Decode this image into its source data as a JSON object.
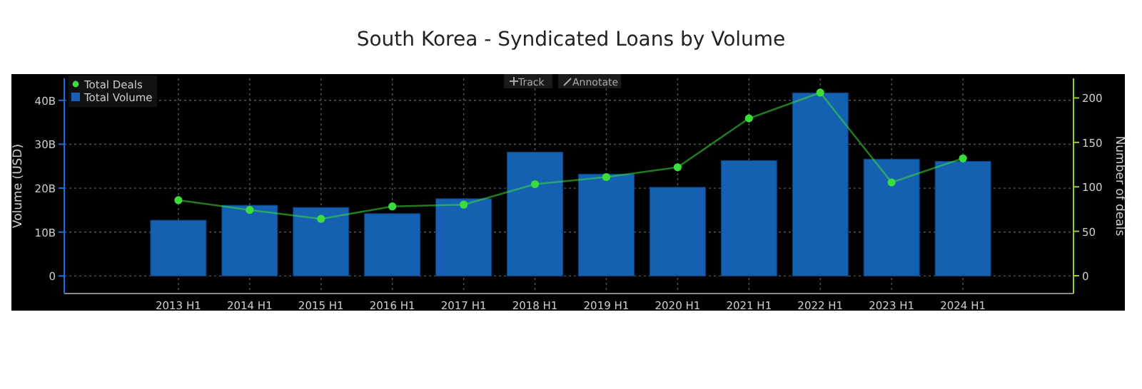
{
  "chart_data": {
    "type": "bar",
    "title": "South Korea - Syndicated Loans by Volume",
    "ylabel": "Volume (USD)",
    "y2label": "Number of deals",
    "categories": [
      "2013 H1",
      "2014 H1",
      "2015 H1",
      "2016 H1",
      "2017 H1",
      "2018 H1",
      "2019 H1",
      "2020 H1",
      "2021 H1",
      "2022 H1",
      "2023 H1",
      "2024 H1"
    ],
    "series": [
      {
        "name": "Total Volume",
        "color": "#1560b0",
        "values": [
          12.7,
          16.1,
          15.6,
          14.2,
          17.6,
          28.2,
          23.2,
          20.2,
          26.3,
          41.7,
          26.6,
          26.1
        ]
      },
      {
        "name": "Total Deals",
        "type": "line",
        "axis": "y2",
        "color": "#3ddc3d",
        "marker": "circle",
        "values": [
          85,
          74,
          64,
          78,
          80,
          103,
          111,
          122,
          177,
          206,
          105,
          132
        ]
      }
    ],
    "ylim": [
      -4,
      45
    ],
    "yticks": [
      {
        "value": 0,
        "label": "0"
      },
      {
        "value": 10,
        "label": "10B"
      },
      {
        "value": 20,
        "label": "20B"
      },
      {
        "value": 30,
        "label": "30B"
      },
      {
        "value": 40,
        "label": "40B"
      }
    ],
    "y2lim": [
      -20,
      222
    ],
    "y2ticks": [
      0,
      50,
      100,
      150,
      200
    ],
    "grid": true,
    "legend": "top left",
    "annotations": [
      "Track",
      "Annotate"
    ]
  }
}
